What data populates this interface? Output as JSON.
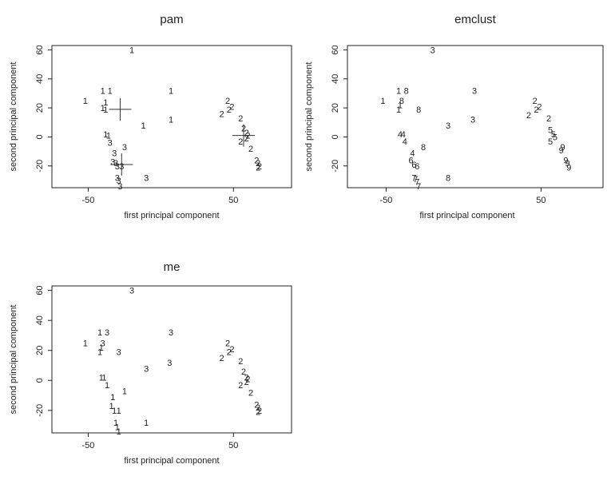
{
  "chart_data": [
    {
      "type": "scatter",
      "title": "pam",
      "xlabel": "first principal component",
      "ylabel": "second principal component",
      "xlim": [
        -75,
        90
      ],
      "ylim": [
        -35,
        63
      ],
      "xticks": [
        "-50",
        "50"
      ],
      "xtick_values": [
        -50,
        50
      ],
      "yticks": [
        "60",
        "40",
        "20",
        "0",
        "-20"
      ],
      "ytick_values": [
        60,
        40,
        20,
        0,
        -20
      ],
      "medoids": [
        {
          "x": -28,
          "y": 19
        },
        {
          "x": -27,
          "y": -19
        },
        {
          "x": 57,
          "y": 1
        }
      ],
      "points": [
        {
          "x": -20,
          "y": 60,
          "label": "1"
        },
        {
          "x": -40,
          "y": 32,
          "label": "1"
        },
        {
          "x": -35,
          "y": 32,
          "label": "1"
        },
        {
          "x": -52,
          "y": 25,
          "label": "1"
        },
        {
          "x": -38,
          "y": 24,
          "label": "1"
        },
        {
          "x": -40,
          "y": 20,
          "label": "1"
        },
        {
          "x": -38,
          "y": 19,
          "label": "1"
        },
        {
          "x": -12,
          "y": 8,
          "label": "1"
        },
        {
          "x": 7,
          "y": 32,
          "label": "1"
        },
        {
          "x": 7,
          "y": 12,
          "label": "1"
        },
        {
          "x": -38,
          "y": 2,
          "label": "1"
        },
        {
          "x": -36,
          "y": 1,
          "label": "1"
        },
        {
          "x": -35,
          "y": -4,
          "label": "3"
        },
        {
          "x": -32,
          "y": -11,
          "label": "3"
        },
        {
          "x": -25,
          "y": -7,
          "label": "3"
        },
        {
          "x": -33,
          "y": -17,
          "label": "3"
        },
        {
          "x": -31,
          "y": -18,
          "label": "3"
        },
        {
          "x": -30,
          "y": -20,
          "label": "3"
        },
        {
          "x": -27,
          "y": -20,
          "label": "3"
        },
        {
          "x": -30,
          "y": -28,
          "label": "3"
        },
        {
          "x": -29,
          "y": -30,
          "label": "3"
        },
        {
          "x": -28,
          "y": -34,
          "label": "3"
        },
        {
          "x": -10,
          "y": -28,
          "label": "3"
        },
        {
          "x": 46,
          "y": 25,
          "label": "2"
        },
        {
          "x": 49,
          "y": 21,
          "label": "2"
        },
        {
          "x": 47,
          "y": 19,
          "label": "2"
        },
        {
          "x": 42,
          "y": 16,
          "label": "2"
        },
        {
          "x": 55,
          "y": 13,
          "label": "2"
        },
        {
          "x": 57,
          "y": 6,
          "label": "2"
        },
        {
          "x": 59,
          "y": 3,
          "label": "2"
        },
        {
          "x": 60,
          "y": 1,
          "label": "2"
        },
        {
          "x": 59,
          "y": -1,
          "label": "2"
        },
        {
          "x": 55,
          "y": -3,
          "label": "2"
        },
        {
          "x": 62,
          "y": -8,
          "label": "2"
        },
        {
          "x": 66,
          "y": -16,
          "label": "2"
        },
        {
          "x": 67,
          "y": -18,
          "label": "2"
        },
        {
          "x": 68,
          "y": -20,
          "label": "2"
        },
        {
          "x": 67,
          "y": -21,
          "label": "2"
        }
      ]
    },
    {
      "type": "scatter",
      "title": "emclust",
      "xlabel": "first principal component",
      "ylabel": "second principal component",
      "xlim": [
        -75,
        90
      ],
      "ylim": [
        -35,
        63
      ],
      "xticks": [
        "-50",
        "50"
      ],
      "xtick_values": [
        -50,
        50
      ],
      "yticks": [
        "60",
        "40",
        "20",
        "0",
        "-20"
      ],
      "ytick_values": [
        60,
        40,
        20,
        0,
        -20
      ],
      "points": [
        {
          "x": -20,
          "y": 60,
          "label": "3"
        },
        {
          "x": -42,
          "y": 32,
          "label": "1"
        },
        {
          "x": -37,
          "y": 32,
          "label": "8"
        },
        {
          "x": -52,
          "y": 25,
          "label": "1"
        },
        {
          "x": -40,
          "y": 25,
          "label": "8"
        },
        {
          "x": -41,
          "y": 22,
          "label": "1"
        },
        {
          "x": -42,
          "y": 19,
          "label": "1"
        },
        {
          "x": -29,
          "y": 19,
          "label": "8"
        },
        {
          "x": -10,
          "y": 8,
          "label": "3"
        },
        {
          "x": 7,
          "y": 32,
          "label": "3"
        },
        {
          "x": 6,
          "y": 12,
          "label": "3"
        },
        {
          "x": -41,
          "y": 2,
          "label": "4"
        },
        {
          "x": -39,
          "y": 2,
          "label": "4"
        },
        {
          "x": -38,
          "y": -3,
          "label": "4"
        },
        {
          "x": -26,
          "y": -7,
          "label": "8"
        },
        {
          "x": -33,
          "y": -11,
          "label": "4"
        },
        {
          "x": -34,
          "y": -16,
          "label": "6"
        },
        {
          "x": -32,
          "y": -19,
          "label": "6"
        },
        {
          "x": -30,
          "y": -20,
          "label": "6"
        },
        {
          "x": -32,
          "y": -28,
          "label": "7"
        },
        {
          "x": -31,
          "y": -29,
          "label": "7"
        },
        {
          "x": -30,
          "y": -31,
          "label": "7"
        },
        {
          "x": -29,
          "y": -34,
          "label": "7"
        },
        {
          "x": -10,
          "y": -28,
          "label": "8"
        },
        {
          "x": 46,
          "y": 25,
          "label": "2"
        },
        {
          "x": 49,
          "y": 21,
          "label": "2"
        },
        {
          "x": 47,
          "y": 19,
          "label": "2"
        },
        {
          "x": 42,
          "y": 15,
          "label": "2"
        },
        {
          "x": 55,
          "y": 13,
          "label": "2"
        },
        {
          "x": 56,
          "y": 5,
          "label": "5"
        },
        {
          "x": 58,
          "y": 2,
          "label": "5"
        },
        {
          "x": 59,
          "y": 0,
          "label": "5"
        },
        {
          "x": 56,
          "y": -3,
          "label": "5"
        },
        {
          "x": 64,
          "y": -7,
          "label": "9"
        },
        {
          "x": 63,
          "y": -9,
          "label": "9"
        },
        {
          "x": 66,
          "y": -16,
          "label": "9"
        },
        {
          "x": 67,
          "y": -18,
          "label": "9"
        },
        {
          "x": 68,
          "y": -21,
          "label": "9"
        }
      ]
    },
    {
      "type": "scatter",
      "title": "me",
      "xlabel": "first principal component",
      "ylabel": "second principal component",
      "xlim": [
        -75,
        90
      ],
      "ylim": [
        -35,
        63
      ],
      "xticks": [
        "-50",
        "50"
      ],
      "xtick_values": [
        -50,
        50
      ],
      "yticks": [
        "60",
        "40",
        "20",
        "0",
        "-20"
      ],
      "ytick_values": [
        60,
        40,
        20,
        0,
        -20
      ],
      "points": [
        {
          "x": -20,
          "y": 60,
          "label": "3"
        },
        {
          "x": -42,
          "y": 32,
          "label": "1"
        },
        {
          "x": -37,
          "y": 32,
          "label": "3"
        },
        {
          "x": -52,
          "y": 25,
          "label": "1"
        },
        {
          "x": -40,
          "y": 25,
          "label": "3"
        },
        {
          "x": -41,
          "y": 22,
          "label": "1"
        },
        {
          "x": -42,
          "y": 19,
          "label": "1"
        },
        {
          "x": -29,
          "y": 19,
          "label": "3"
        },
        {
          "x": -10,
          "y": 8,
          "label": "3"
        },
        {
          "x": 7,
          "y": 32,
          "label": "3"
        },
        {
          "x": 6,
          "y": 12,
          "label": "3"
        },
        {
          "x": -41,
          "y": 2,
          "label": "1"
        },
        {
          "x": -39,
          "y": 2,
          "label": "1"
        },
        {
          "x": -37,
          "y": -3,
          "label": "1"
        },
        {
          "x": -25,
          "y": -7,
          "label": "1"
        },
        {
          "x": -33,
          "y": -11,
          "label": "1"
        },
        {
          "x": -34,
          "y": -17,
          "label": "1"
        },
        {
          "x": -32,
          "y": -20,
          "label": "1"
        },
        {
          "x": -29,
          "y": -20,
          "label": "1"
        },
        {
          "x": -31,
          "y": -28,
          "label": "1"
        },
        {
          "x": -30,
          "y": -31,
          "label": "1"
        },
        {
          "x": -29,
          "y": -34,
          "label": "1"
        },
        {
          "x": -10,
          "y": -28,
          "label": "1"
        },
        {
          "x": 46,
          "y": 25,
          "label": "2"
        },
        {
          "x": 49,
          "y": 21,
          "label": "2"
        },
        {
          "x": 47,
          "y": 19,
          "label": "2"
        },
        {
          "x": 42,
          "y": 15,
          "label": "2"
        },
        {
          "x": 55,
          "y": 13,
          "label": "2"
        },
        {
          "x": 57,
          "y": 6,
          "label": "2"
        },
        {
          "x": 59,
          "y": 2,
          "label": "2"
        },
        {
          "x": 60,
          "y": 1,
          "label": "2"
        },
        {
          "x": 59,
          "y": -1,
          "label": "2"
        },
        {
          "x": 55,
          "y": -3,
          "label": "2"
        },
        {
          "x": 62,
          "y": -8,
          "label": "2"
        },
        {
          "x": 66,
          "y": -16,
          "label": "2"
        },
        {
          "x": 67,
          "y": -18,
          "label": "2"
        },
        {
          "x": 68,
          "y": -20,
          "label": "2"
        },
        {
          "x": 67,
          "y": -21,
          "label": "2"
        }
      ]
    }
  ]
}
